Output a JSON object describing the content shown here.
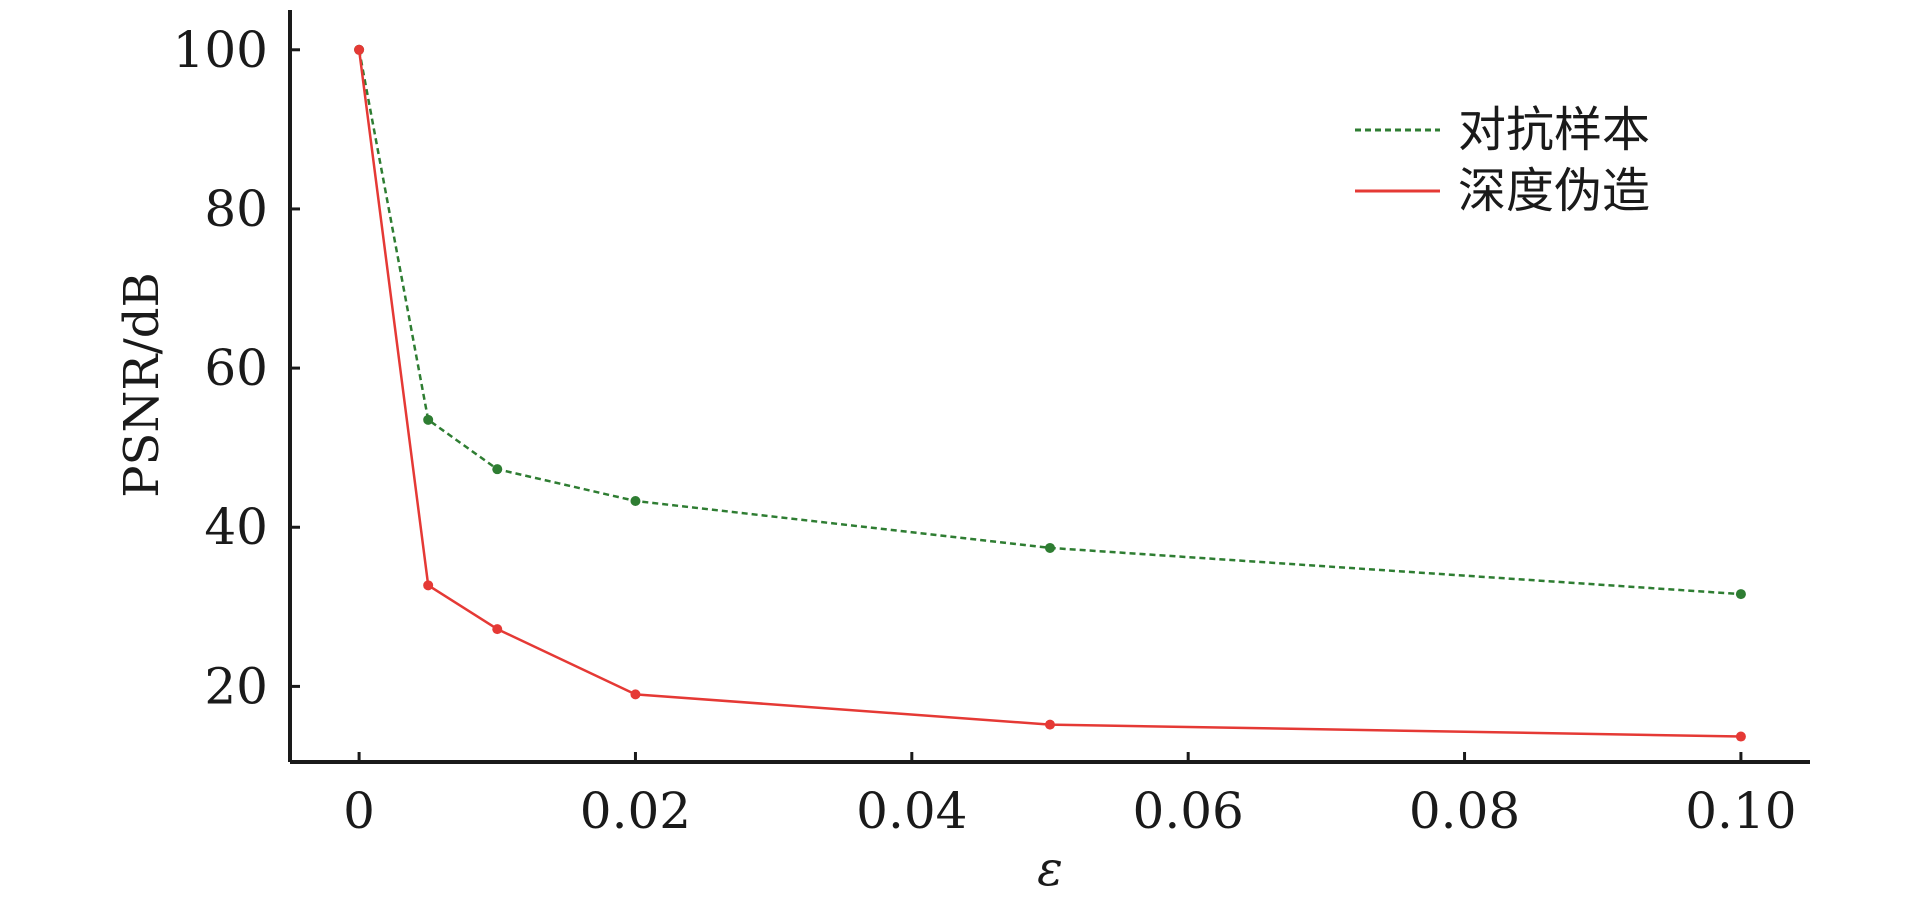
{
  "chart_data": {
    "type": "line",
    "title": "",
    "xlabel": "ε",
    "ylabel": "PSNR/dB",
    "x": [
      0,
      0.005,
      0.01,
      0.02,
      0.05,
      0.1
    ],
    "xlim": [
      -0.005,
      0.105
    ],
    "ylim": [
      10.5,
      105
    ],
    "xticks": [
      0,
      0.02,
      0.04,
      0.06,
      0.08,
      0.1
    ],
    "xtick_labels": [
      "0",
      "0.02",
      "0.04",
      "0.06",
      "0.08",
      "0.10"
    ],
    "yticks": [
      20,
      40,
      60,
      80,
      100
    ],
    "ytick_labels": [
      "20",
      "40",
      "60",
      "80",
      "100"
    ],
    "grid": false,
    "legend_position": "top-right",
    "series": [
      {
        "name": "对抗样本",
        "values": [
          100,
          53.5,
          47.3,
          43.3,
          37.4,
          31.6
        ],
        "color": "#2e7d32",
        "style": "dashed"
      },
      {
        "name": "深度伪造",
        "values": [
          100,
          32.7,
          27.2,
          19.0,
          15.2,
          13.7
        ],
        "color": "#e53935",
        "style": "solid"
      }
    ]
  }
}
